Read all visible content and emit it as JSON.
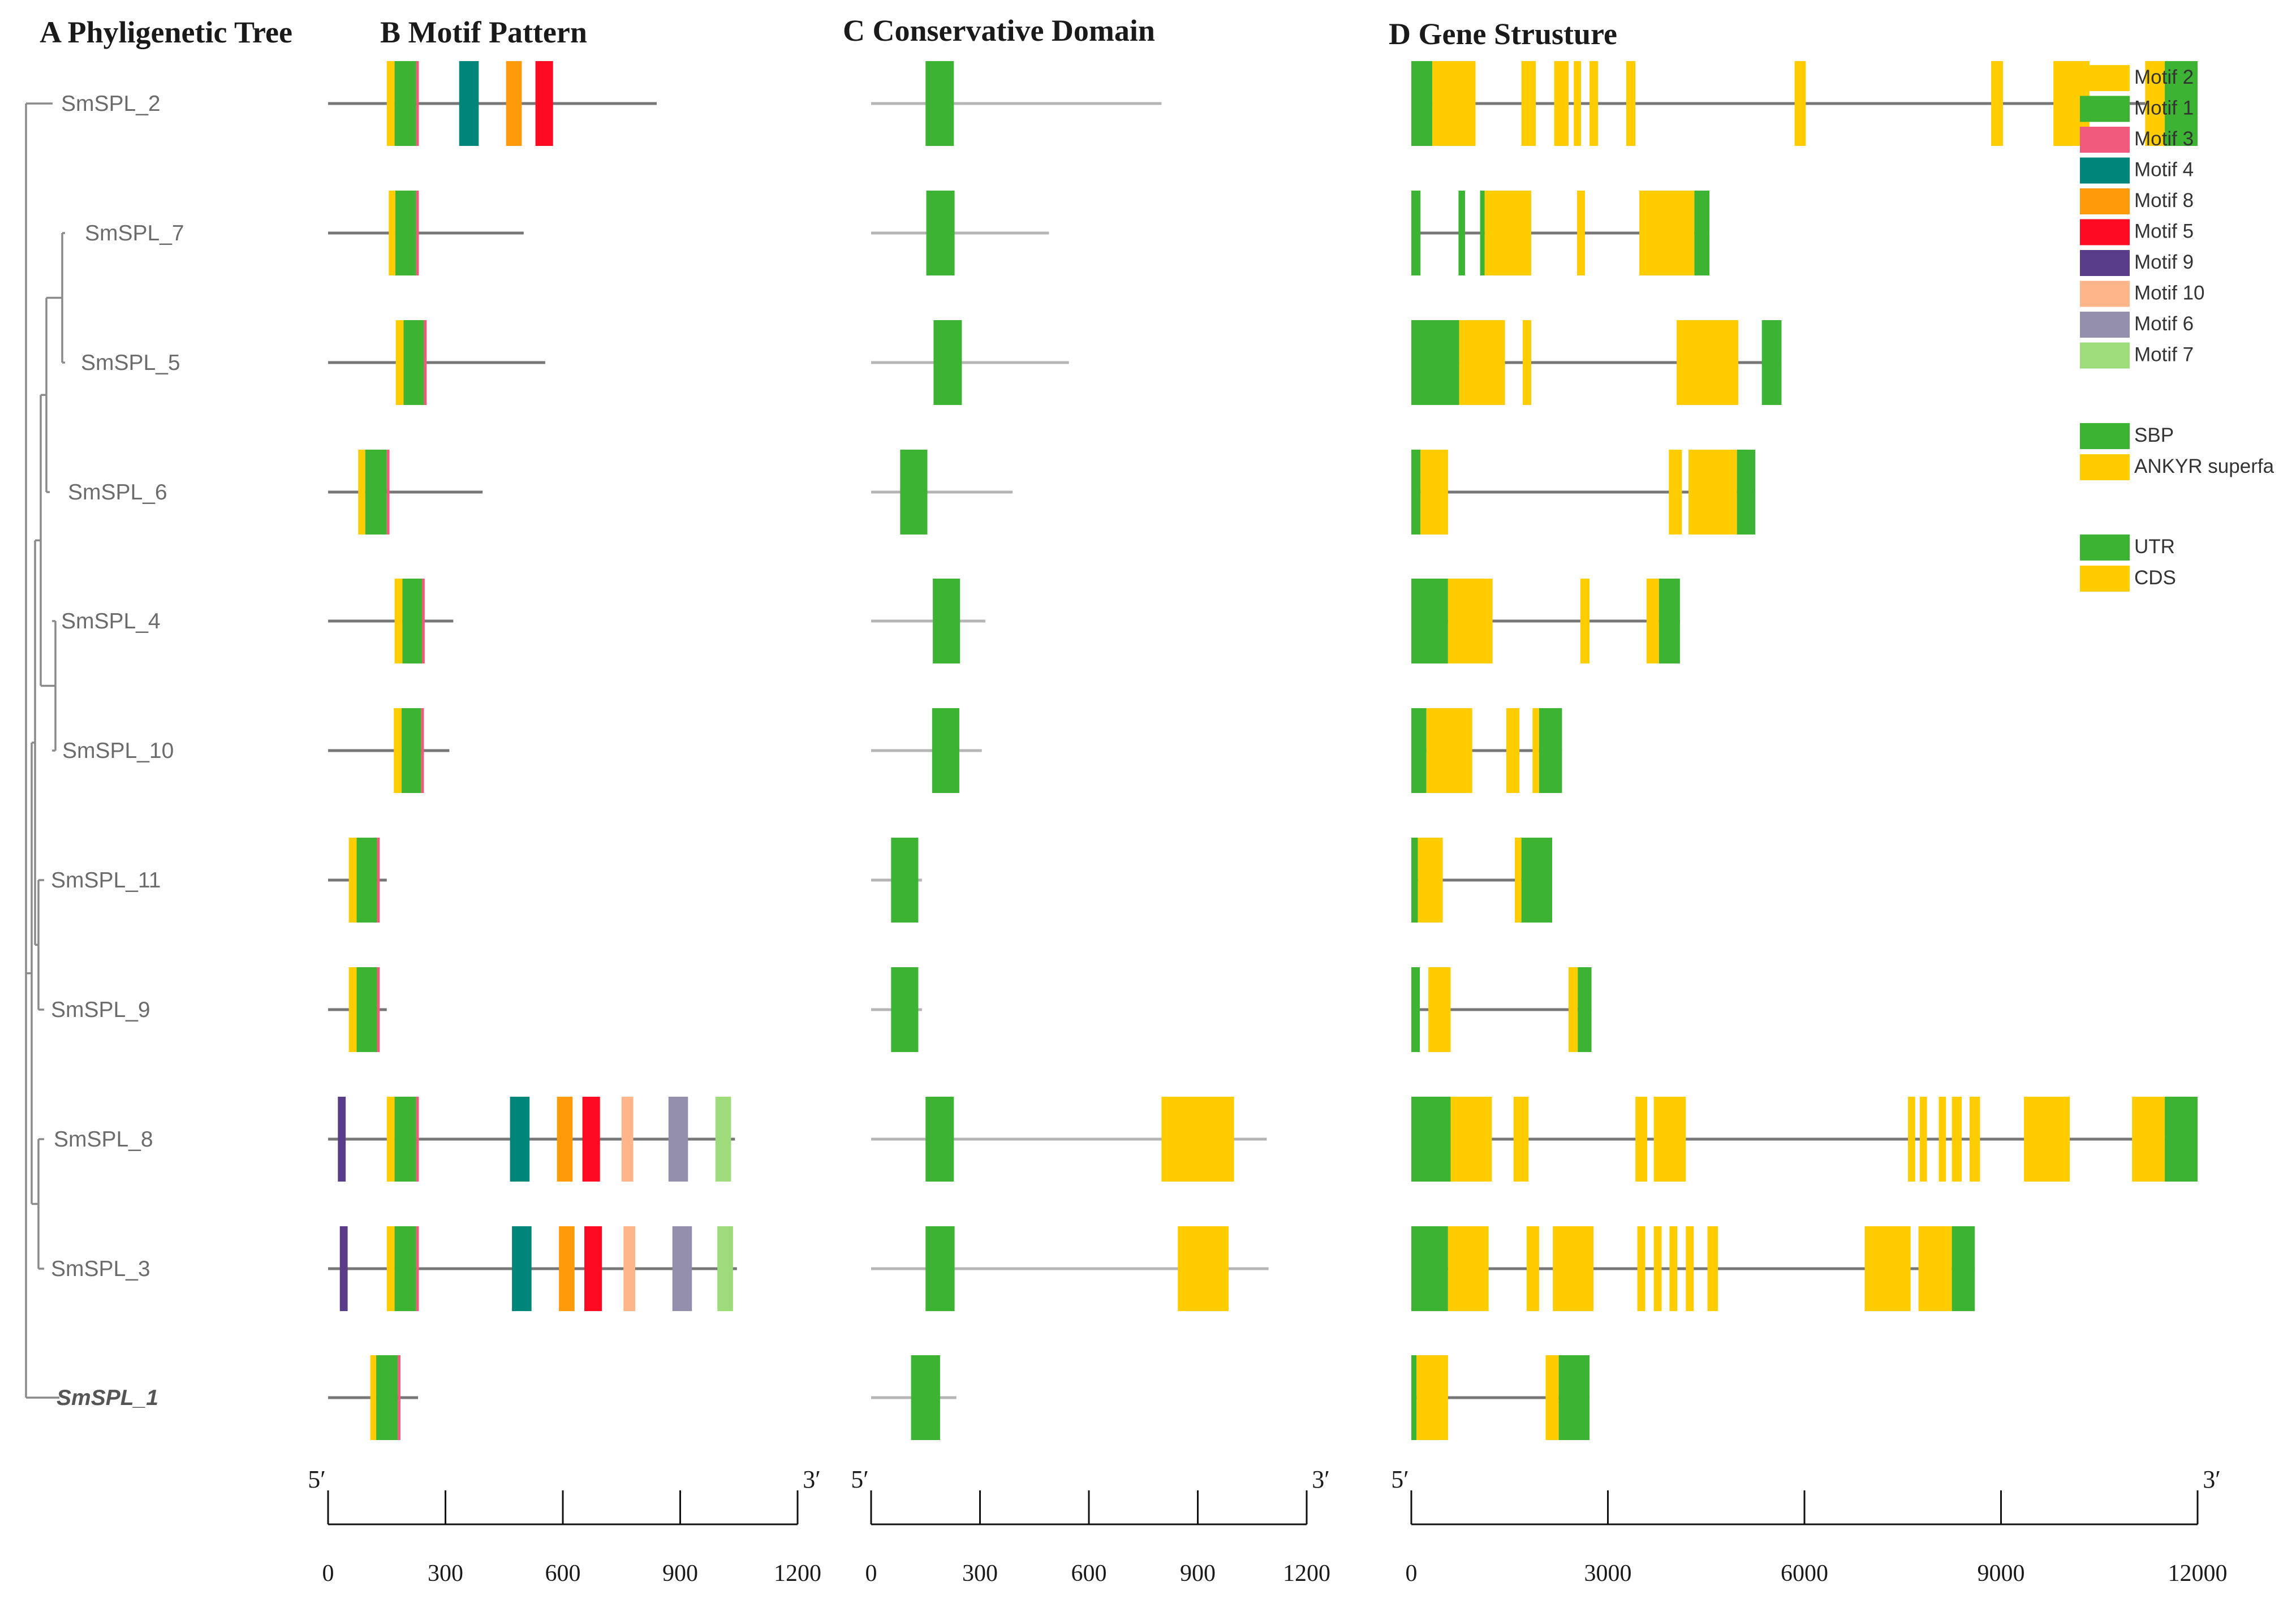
{
  "panels": {
    "A": "A Phyligenetic Tree",
    "B": "B Motif Pattern",
    "C": "C Conservative Domain",
    "D": "D Gene Strusture"
  },
  "genes": [
    {
      "id": "SmSPL_2",
      "label": "SmSPL_2",
      "bold": false,
      "protein_len": 840,
      "motifs": [
        {
          "m": "Motif 2",
          "s": 150,
          "e": 170
        },
        {
          "m": "Motif 1",
          "s": 170,
          "e": 225
        },
        {
          "m": "Motif 3",
          "s": 225,
          "e": 232
        },
        {
          "m": "Motif 4",
          "s": 335,
          "e": 385
        },
        {
          "m": "Motif 8",
          "s": 455,
          "e": 495
        },
        {
          "m": "Motif 5",
          "s": 530,
          "e": 575
        }
      ],
      "domain_line": [
        0,
        800
      ],
      "domains": [
        {
          "d": "SBP",
          "s": 150,
          "e": 228
        }
      ],
      "gene_len": 12000,
      "features": [
        {
          "t": "UTR",
          "s": 0,
          "e": 320
        },
        {
          "t": "CDS",
          "s": 320,
          "e": 980
        },
        {
          "t": "CDS",
          "s": 1680,
          "e": 1900
        },
        {
          "t": "CDS",
          "s": 2180,
          "e": 2400
        },
        {
          "t": "CDS",
          "s": 2480,
          "e": 2590
        },
        {
          "t": "CDS",
          "s": 2720,
          "e": 2850
        },
        {
          "t": "CDS",
          "s": 3280,
          "e": 3420
        },
        {
          "t": "CDS",
          "s": 5850,
          "e": 6020
        },
        {
          "t": "CDS",
          "s": 8850,
          "e": 9030
        },
        {
          "t": "CDS",
          "s": 9800,
          "e": 10350
        },
        {
          "t": "CDS",
          "s": 11200,
          "e": 11500
        },
        {
          "t": "UTR",
          "s": 11500,
          "e": 12000
        }
      ]
    },
    {
      "id": "SmSPL_7",
      "label": "SmSPL_7",
      "bold": false,
      "protein_len": 500,
      "motifs": [
        {
          "m": "Motif 2",
          "s": 155,
          "e": 172
        },
        {
          "m": "Motif 1",
          "s": 172,
          "e": 225
        },
        {
          "m": "Motif 3",
          "s": 225,
          "e": 232
        }
      ],
      "domain_line": [
        0,
        490
      ],
      "domains": [
        {
          "d": "SBP",
          "s": 152,
          "e": 230
        }
      ],
      "gene_len": 4550,
      "features": [
        {
          "t": "UTR",
          "s": 0,
          "e": 140
        },
        {
          "t": "UTR",
          "s": 720,
          "e": 820
        },
        {
          "t": "UTR",
          "s": 1050,
          "e": 1120
        },
        {
          "t": "CDS",
          "s": 1120,
          "e": 1830
        },
        {
          "t": "CDS",
          "s": 2530,
          "e": 2650
        },
        {
          "t": "CDS",
          "s": 3480,
          "e": 4320
        },
        {
          "t": "UTR",
          "s": 4320,
          "e": 4550
        }
      ]
    },
    {
      "id": "SmSPL_5",
      "label": "SmSPL_5",
      "bold": false,
      "protein_len": 555,
      "motifs": [
        {
          "m": "Motif 2",
          "s": 173,
          "e": 193
        },
        {
          "m": "Motif 1",
          "s": 193,
          "e": 245
        },
        {
          "m": "Motif 3",
          "s": 245,
          "e": 252
        }
      ],
      "domain_line": [
        0,
        545
      ],
      "domains": [
        {
          "d": "SBP",
          "s": 172,
          "e": 250
        }
      ],
      "gene_len": 5650,
      "features": [
        {
          "t": "UTR",
          "s": 0,
          "e": 730
        },
        {
          "t": "CDS",
          "s": 730,
          "e": 1430
        },
        {
          "t": "CDS",
          "s": 1700,
          "e": 1830
        },
        {
          "t": "CDS",
          "s": 4050,
          "e": 4990
        },
        {
          "t": "UTR",
          "s": 5350,
          "e": 5650
        }
      ]
    },
    {
      "id": "SmSPL_6",
      "label": "SmSPL_6",
      "bold": false,
      "protein_len": 395,
      "motifs": [
        {
          "m": "Motif 2",
          "s": 77,
          "e": 95
        },
        {
          "m": "Motif 1",
          "s": 95,
          "e": 150
        },
        {
          "m": "Motif 3",
          "s": 150,
          "e": 157
        }
      ],
      "domain_line": [
        0,
        390
      ],
      "domains": [
        {
          "d": "SBP",
          "s": 80,
          "e": 155
        }
      ],
      "gene_len": 5250,
      "features": [
        {
          "t": "UTR",
          "s": 0,
          "e": 140
        },
        {
          "t": "CDS",
          "s": 140,
          "e": 560
        },
        {
          "t": "CDS",
          "s": 3930,
          "e": 4130
        },
        {
          "t": "CDS",
          "s": 4230,
          "e": 4970
        },
        {
          "t": "UTR",
          "s": 4970,
          "e": 5250
        }
      ]
    },
    {
      "id": "SmSPL_4",
      "label": "SmSPL_4",
      "bold": false,
      "protein_len": 320,
      "motifs": [
        {
          "m": "Motif 2",
          "s": 170,
          "e": 190
        },
        {
          "m": "Motif 1",
          "s": 190,
          "e": 240
        },
        {
          "m": "Motif 3",
          "s": 240,
          "e": 247
        }
      ],
      "domain_line": [
        0,
        315
      ],
      "domains": [
        {
          "d": "SBP",
          "s": 170,
          "e": 245
        }
      ],
      "gene_len": 4100,
      "features": [
        {
          "t": "UTR",
          "s": 0,
          "e": 560
        },
        {
          "t": "CDS",
          "s": 560,
          "e": 1240
        },
        {
          "t": "CDS",
          "s": 2580,
          "e": 2720
        },
        {
          "t": "CDS",
          "s": 3590,
          "e": 3780
        },
        {
          "t": "UTR",
          "s": 3780,
          "e": 4100
        }
      ]
    },
    {
      "id": "SmSPL_10",
      "label": "SmSPL_10",
      "bold": false,
      "protein_len": 310,
      "motifs": [
        {
          "m": "Motif 2",
          "s": 168,
          "e": 188
        },
        {
          "m": "Motif 1",
          "s": 188,
          "e": 238
        },
        {
          "m": "Motif 3",
          "s": 238,
          "e": 245
        }
      ],
      "domain_line": [
        0,
        305
      ],
      "domains": [
        {
          "d": "SBP",
          "s": 168,
          "e": 243
        }
      ],
      "gene_len": 2300,
      "features": [
        {
          "t": "UTR",
          "s": 0,
          "e": 230
        },
        {
          "t": "CDS",
          "s": 230,
          "e": 930
        },
        {
          "t": "CDS",
          "s": 1450,
          "e": 1650
        },
        {
          "t": "CDS",
          "s": 1850,
          "e": 1950
        },
        {
          "t": "UTR",
          "s": 1950,
          "e": 2300
        }
      ]
    },
    {
      "id": "SmSPL_11",
      "label": "SmSPL_11",
      "bold": false,
      "protein_len": 150,
      "motifs": [
        {
          "m": "Motif 2",
          "s": 53,
          "e": 73
        },
        {
          "m": "Motif 1",
          "s": 73,
          "e": 125
        },
        {
          "m": "Motif 3",
          "s": 125,
          "e": 132
        }
      ],
      "domain_line": [
        0,
        140
      ],
      "domains": [
        {
          "d": "SBP",
          "s": 55,
          "e": 130
        }
      ],
      "gene_len": 2150,
      "features": [
        {
          "t": "UTR",
          "s": 0,
          "e": 100
        },
        {
          "t": "CDS",
          "s": 100,
          "e": 480
        },
        {
          "t": "CDS",
          "s": 1580,
          "e": 1680
        },
        {
          "t": "UTR",
          "s": 1680,
          "e": 2150
        }
      ]
    },
    {
      "id": "SmSPL_9",
      "label": "SmSPL_9",
      "bold": false,
      "protein_len": 150,
      "motifs": [
        {
          "m": "Motif 2",
          "s": 53,
          "e": 73
        },
        {
          "m": "Motif 1",
          "s": 73,
          "e": 125
        },
        {
          "m": "Motif 3",
          "s": 125,
          "e": 132
        }
      ],
      "domain_line": [
        0,
        140
      ],
      "domains": [
        {
          "d": "SBP",
          "s": 55,
          "e": 130
        }
      ],
      "gene_len": 2750,
      "features": [
        {
          "t": "UTR",
          "s": 0,
          "e": 130
        },
        {
          "t": "CDS",
          "s": 260,
          "e": 600
        },
        {
          "t": "CDS",
          "s": 2400,
          "e": 2540
        },
        {
          "t": "UTR",
          "s": 2540,
          "e": 2750
        }
      ]
    },
    {
      "id": "SmSPL_8",
      "label": "SmSPL_8",
      "bold": false,
      "protein_len": 1040,
      "motifs": [
        {
          "m": "Motif 9",
          "s": 25,
          "e": 45
        },
        {
          "m": "Motif 2",
          "s": 150,
          "e": 170
        },
        {
          "m": "Motif 1",
          "s": 170,
          "e": 225
        },
        {
          "m": "Motif 3",
          "s": 225,
          "e": 232
        },
        {
          "m": "Motif 4",
          "s": 465,
          "e": 515
        },
        {
          "m": "Motif 8",
          "s": 585,
          "e": 625
        },
        {
          "m": "Motif 5",
          "s": 650,
          "e": 695
        },
        {
          "m": "Motif 10",
          "s": 750,
          "e": 780
        },
        {
          "m": "Motif 6",
          "s": 870,
          "e": 920
        },
        {
          "m": "Motif 7",
          "s": 990,
          "e": 1030
        }
      ],
      "domain_line": [
        0,
        1090
      ],
      "domains": [
        {
          "d": "SBP",
          "s": 150,
          "e": 228
        },
        {
          "d": "ANKYR superfa",
          "s": 800,
          "e": 1000
        }
      ],
      "gene_len": 12000,
      "features": [
        {
          "t": "UTR",
          "s": 0,
          "e": 600
        },
        {
          "t": "CDS",
          "s": 600,
          "e": 1230
        },
        {
          "t": "CDS",
          "s": 1560,
          "e": 1790
        },
        {
          "t": "CDS",
          "s": 3420,
          "e": 3600
        },
        {
          "t": "CDS",
          "s": 3700,
          "e": 4190
        },
        {
          "t": "CDS",
          "s": 7580,
          "e": 7690
        },
        {
          "t": "CDS",
          "s": 7760,
          "e": 7870
        },
        {
          "t": "CDS",
          "s": 8050,
          "e": 8160
        },
        {
          "t": "CDS",
          "s": 8250,
          "e": 8400
        },
        {
          "t": "CDS",
          "s": 8520,
          "e": 8680
        },
        {
          "t": "CDS",
          "s": 9350,
          "e": 10050
        },
        {
          "t": "CDS",
          "s": 11000,
          "e": 11500
        },
        {
          "t": "UTR",
          "s": 11500,
          "e": 12000
        }
      ]
    },
    {
      "id": "SmSPL_3",
      "label": "SmSPL_3",
      "bold": false,
      "protein_len": 1045,
      "motifs": [
        {
          "m": "Motif 9",
          "s": 30,
          "e": 50
        },
        {
          "m": "Motif 2",
          "s": 150,
          "e": 170
        },
        {
          "m": "Motif 1",
          "s": 170,
          "e": 225
        },
        {
          "m": "Motif 3",
          "s": 225,
          "e": 232
        },
        {
          "m": "Motif 4",
          "s": 470,
          "e": 520
        },
        {
          "m": "Motif 8",
          "s": 590,
          "e": 630
        },
        {
          "m": "Motif 5",
          "s": 655,
          "e": 700
        },
        {
          "m": "Motif 10",
          "s": 755,
          "e": 785
        },
        {
          "m": "Motif 6",
          "s": 880,
          "e": 930
        },
        {
          "m": "Motif 7",
          "s": 995,
          "e": 1035
        }
      ],
      "domain_line": [
        0,
        1095
      ],
      "domains": [
        {
          "d": "SBP",
          "s": 150,
          "e": 230
        },
        {
          "d": "ANKYR superfa",
          "s": 845,
          "e": 985
        }
      ],
      "gene_len": 8600,
      "features": [
        {
          "t": "UTR",
          "s": 0,
          "e": 560
        },
        {
          "t": "CDS",
          "s": 560,
          "e": 1180
        },
        {
          "t": "CDS",
          "s": 1760,
          "e": 1950
        },
        {
          "t": "CDS",
          "s": 2160,
          "e": 2780
        },
        {
          "t": "CDS",
          "s": 3450,
          "e": 3570
        },
        {
          "t": "CDS",
          "s": 3700,
          "e": 3820
        },
        {
          "t": "CDS",
          "s": 3940,
          "e": 4060
        },
        {
          "t": "CDS",
          "s": 4190,
          "e": 4310
        },
        {
          "t": "CDS",
          "s": 4520,
          "e": 4680
        },
        {
          "t": "CDS",
          "s": 6920,
          "e": 7620
        },
        {
          "t": "CDS",
          "s": 7740,
          "e": 8250
        },
        {
          "t": "UTR",
          "s": 8250,
          "e": 8600
        }
      ]
    },
    {
      "id": "SmSPL_1",
      "label": "SmSPL_1",
      "bold": true,
      "protein_len": 230,
      "motifs": [
        {
          "m": "Motif 2",
          "s": 108,
          "e": 123
        },
        {
          "m": "Motif 1",
          "s": 123,
          "e": 178
        },
        {
          "m": "Motif 3",
          "s": 178,
          "e": 185
        }
      ],
      "domain_line": [
        0,
        235
      ],
      "domains": [
        {
          "d": "SBP",
          "s": 110,
          "e": 190
        }
      ],
      "gene_len": 2720,
      "features": [
        {
          "t": "UTR",
          "s": 0,
          "e": 80
        },
        {
          "t": "CDS",
          "s": 80,
          "e": 560
        },
        {
          "t": "CDS",
          "s": 2050,
          "e": 2250
        },
        {
          "t": "UTR",
          "s": 2250,
          "e": 2720
        }
      ]
    }
  ],
  "legend": {
    "motifs": [
      {
        "label": "Motif 2",
        "color": "#FFCC00"
      },
      {
        "label": "Motif 1",
        "color": "#3DB334"
      },
      {
        "label": "Motif 3",
        "color": "#F25A7D"
      },
      {
        "label": "Motif 4",
        "color": "#00857A"
      },
      {
        "label": "Motif 8",
        "color": "#FF9A0A"
      },
      {
        "label": "Motif 5",
        "color": "#FF0A23"
      },
      {
        "label": "Motif 9",
        "color": "#5A3D8A"
      },
      {
        "label": "Motif 10",
        "color": "#FFB58A"
      },
      {
        "label": "Motif 6",
        "color": "#958FAE"
      },
      {
        "label": "Motif 7",
        "color": "#9DDB7B"
      }
    ],
    "domains": [
      {
        "label": "SBP",
        "color": "#3DB334"
      },
      {
        "label": "ANKYR superfa",
        "color": "#FFCC00"
      }
    ],
    "features": [
      {
        "label": "UTR",
        "color": "#3DB334"
      },
      {
        "label": "CDS",
        "color": "#FFCC00"
      }
    ]
  },
  "scales": {
    "motif": {
      "max": 1200,
      "ticks": [
        "0",
        "300",
        "600",
        "900",
        "1200"
      ],
      "start": "5′",
      "end": "3′"
    },
    "domain": {
      "max": 1200,
      "ticks": [
        "0",
        "300",
        "600",
        "900",
        "1200"
      ],
      "start": "5′",
      "end": "3′"
    },
    "gene": {
      "max": 12000,
      "ticks": [
        "0",
        "3000",
        "6000",
        "9000",
        "12000"
      ],
      "start": "5′",
      "end": "3′"
    }
  },
  "colors": {
    "tree": "#8a8a8a",
    "motif_line": "#777777",
    "domain_line": "#b5b5b5",
    "gene_line": "#777777"
  }
}
